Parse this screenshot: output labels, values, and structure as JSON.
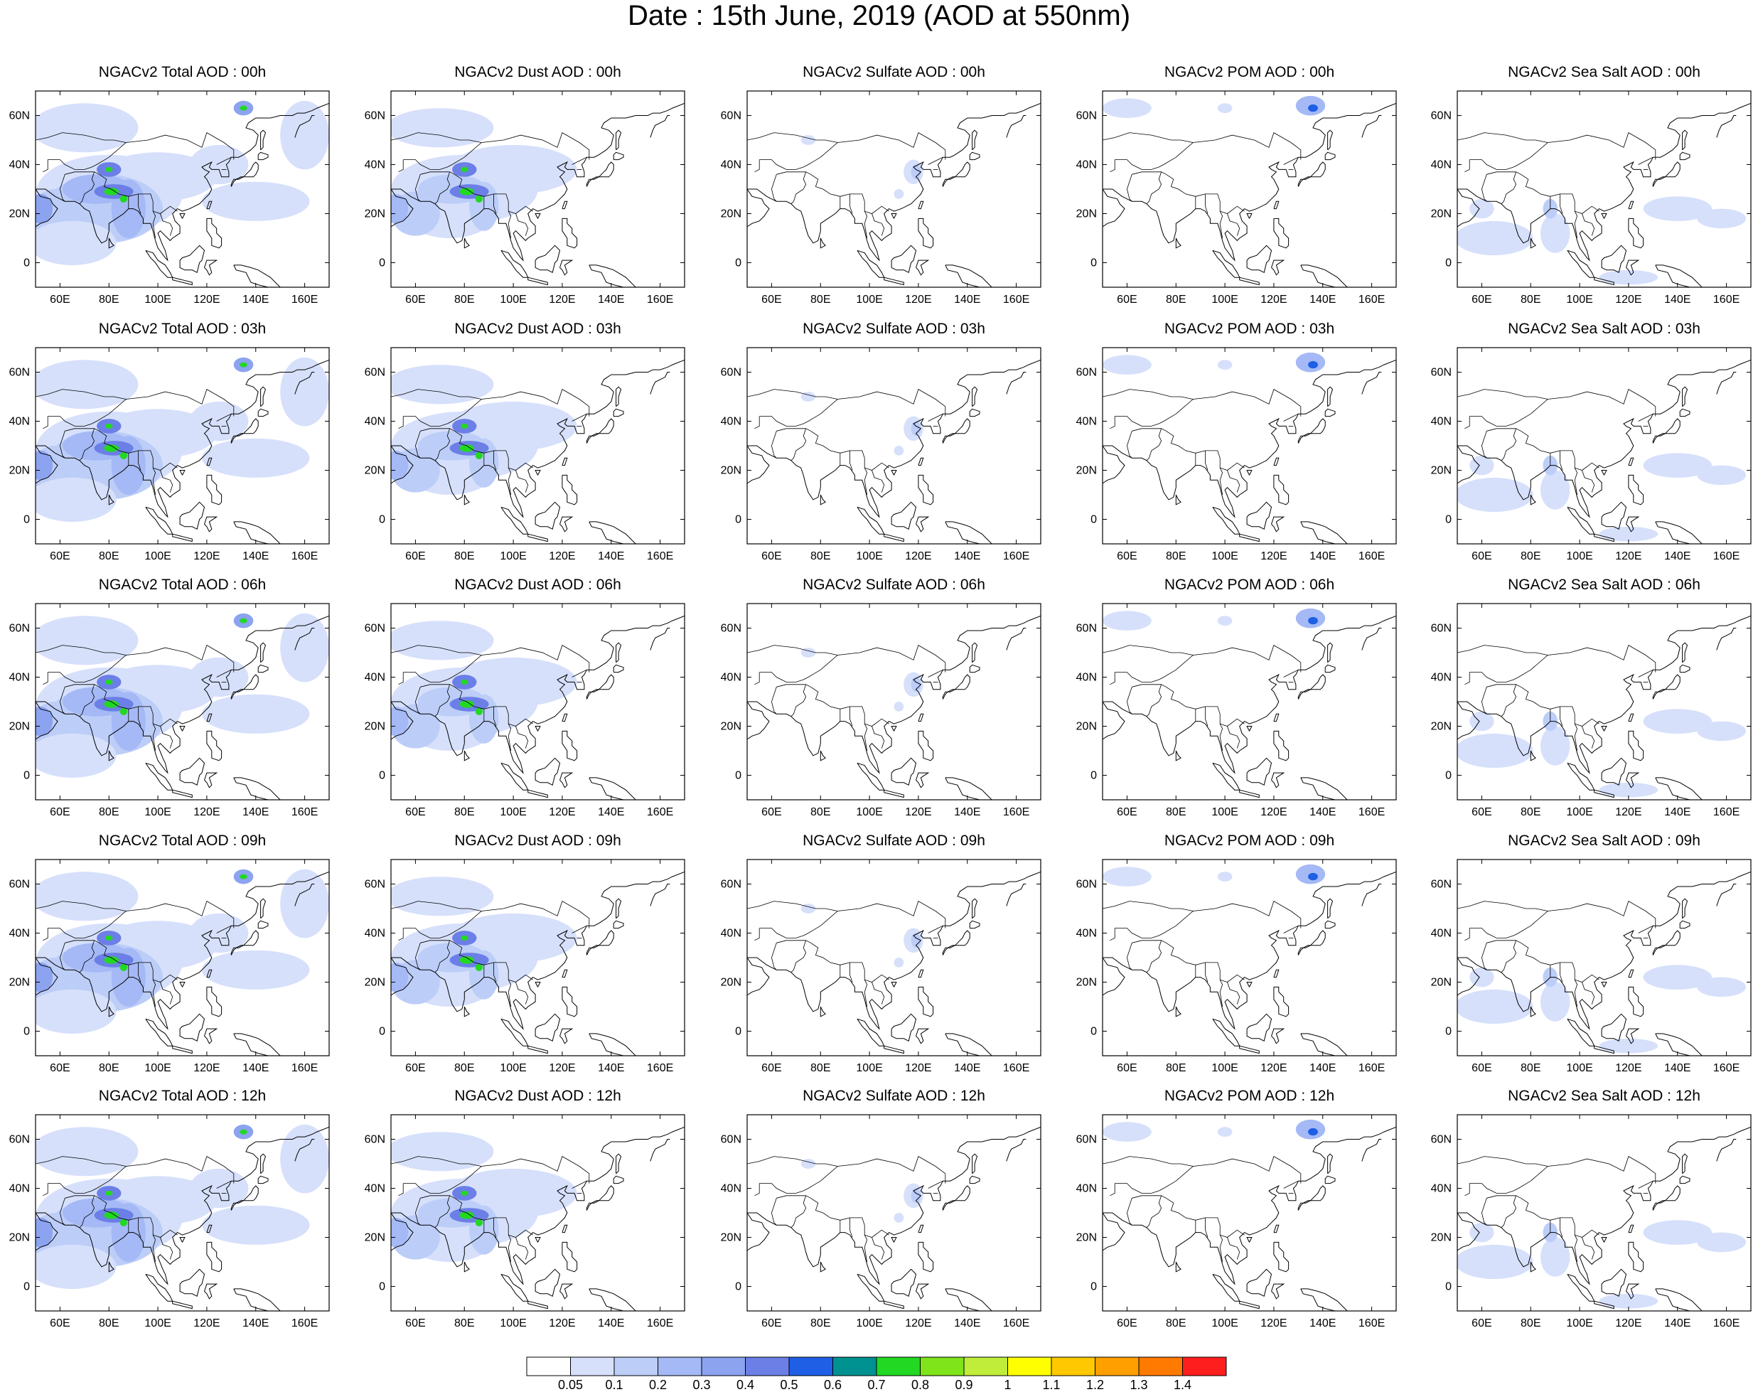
{
  "title": "Date : 15th June, 2019 (AOD at 550nm)",
  "lon_ticks": [
    "60E",
    "80E",
    "100E",
    "120E",
    "140E",
    "160E"
  ],
  "lat_ticks": [
    "60N",
    "40N",
    "20N",
    "0"
  ],
  "extent": {
    "lon": [
      50,
      170
    ],
    "lat": [
      -10,
      70
    ]
  },
  "panels": [
    [
      "NGACv2 Total AOD : 00h",
      "NGACv2 Dust AOD : 00h",
      "NGACv2 Sulfate AOD : 00h",
      "NGACv2 POM AOD : 00h",
      "NGACv2 Sea Salt AOD : 00h"
    ],
    [
      "NGACv2 Total AOD : 03h",
      "NGACv2 Dust AOD : 03h",
      "NGACv2 Sulfate AOD : 03h",
      "NGACv2 POM AOD : 03h",
      "NGACv2 Sea Salt AOD : 03h"
    ],
    [
      "NGACv2 Total AOD : 06h",
      "NGACv2 Dust AOD : 06h",
      "NGACv2 Sulfate AOD : 06h",
      "NGACv2 POM AOD : 06h",
      "NGACv2 Sea Salt AOD : 06h"
    ],
    [
      "NGACv2 Total AOD : 09h",
      "NGACv2 Dust AOD : 09h",
      "NGACv2 Sulfate AOD : 09h",
      "NGACv2 POM AOD : 09h",
      "NGACv2 Sea Salt  AOD : 09h"
    ],
    [
      "NGACv2 Total AOD  : 12h",
      "NGACv2 Dust AOD : 12h",
      "NGACv2 Sulfate AOD : 12h",
      "NGACv2 POM  AOD : 12h",
      "NGACv2 Sea Salt  AOD : 12h"
    ]
  ],
  "colorbar": {
    "labels": [
      "0.05",
      "0.1",
      "0.2",
      "0.3",
      "0.4",
      "0.5",
      "0.6",
      "0.7",
      "0.8",
      "0.9",
      "1",
      "1.1",
      "1.2",
      "1.3",
      "1.4"
    ],
    "colors": [
      "#ffffff",
      "#d6e0fb",
      "#bccdf8",
      "#a4b9f5",
      "#8ca3f0",
      "#6c7fe7",
      "#1e5fe6",
      "#009191",
      "#22d822",
      "#7fe41a",
      "#c0ec3a",
      "#ffff00",
      "#ffc800",
      "#ffa000",
      "#ff7a00",
      "#ff1e1e"
    ]
  },
  "colors": {
    "coast": "#000000",
    "border": "#000000"
  }
}
